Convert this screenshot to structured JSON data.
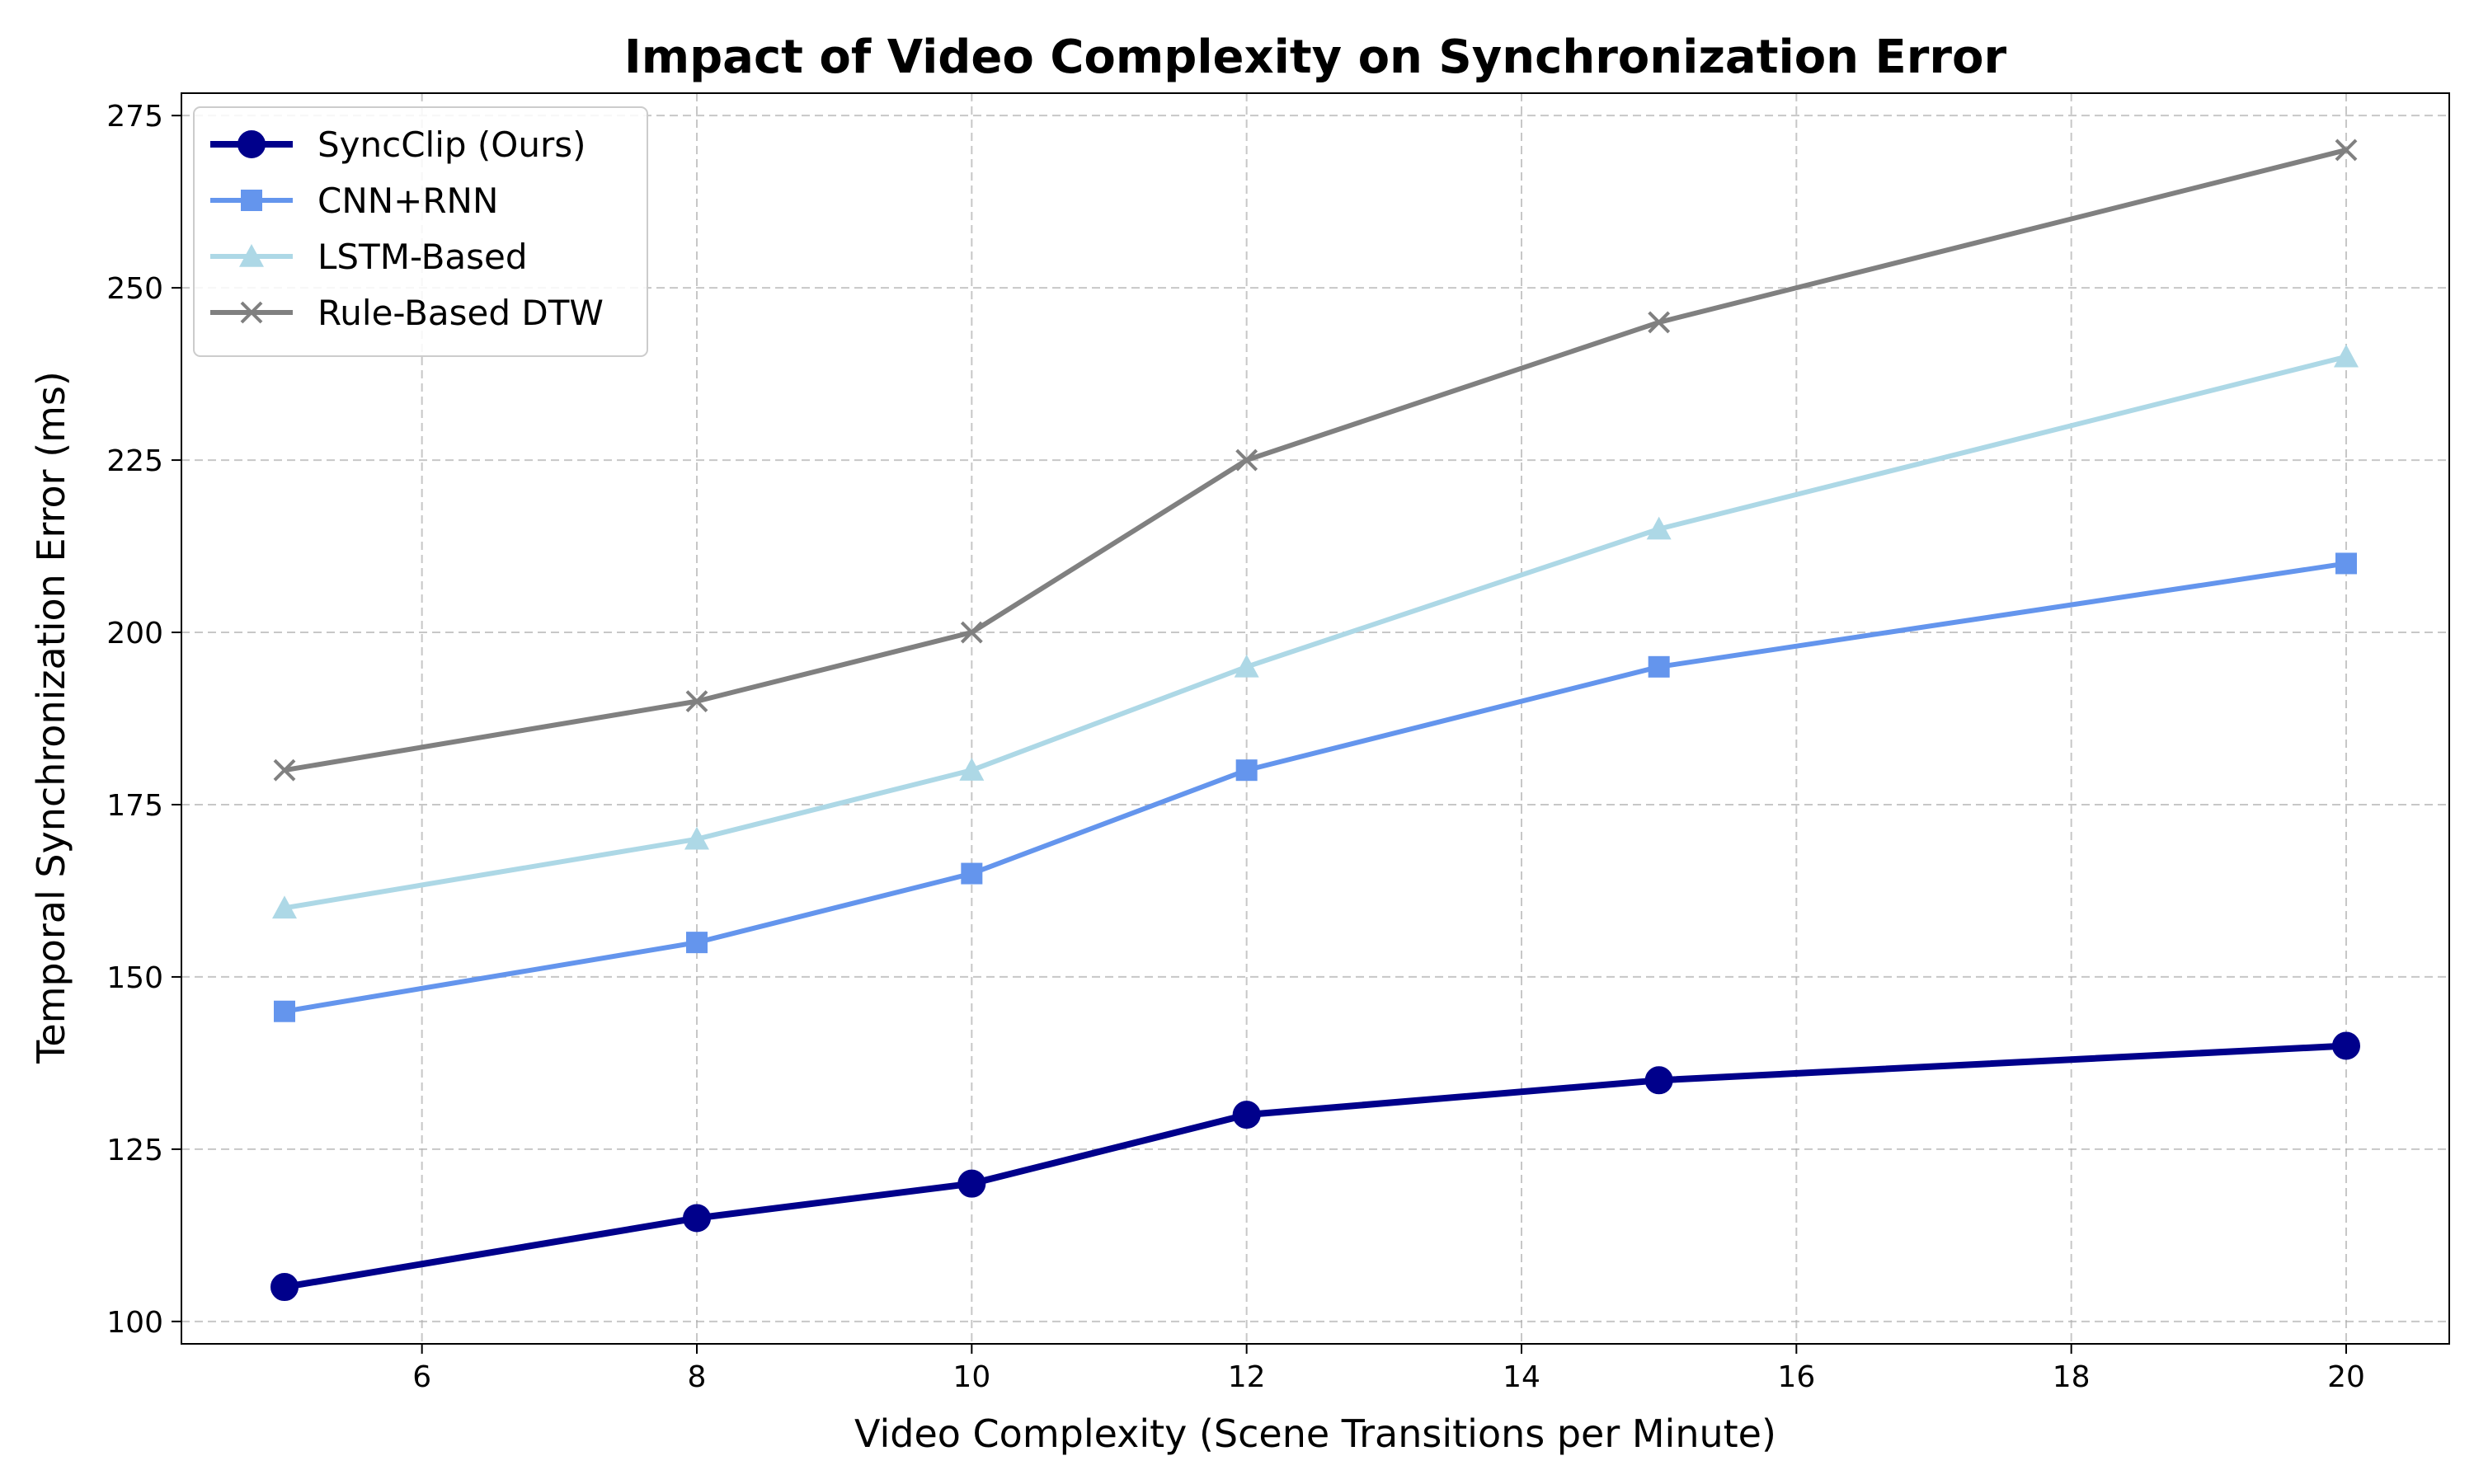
{
  "chart_data": {
    "type": "line",
    "title": "Impact of Video Complexity on Synchronization Error",
    "xlabel": "Video Complexity (Scene Transitions per Minute)",
    "ylabel": "Temporal Synchronization Error (ms)",
    "x": [
      5,
      8,
      10,
      12,
      15,
      20
    ],
    "xlim": [
      4.25,
      20.75
    ],
    "ylim": [
      96.75,
      278.25
    ],
    "xticks": [
      6,
      8,
      10,
      12,
      14,
      16,
      18,
      20
    ],
    "yticks": [
      100,
      125,
      150,
      175,
      200,
      225,
      250,
      275
    ],
    "grid": true,
    "legend_position": "upper-left",
    "series": [
      {
        "name": "SyncClip (Ours)",
        "values": [
          105,
          115,
          120,
          130,
          135,
          140
        ],
        "color": "#00008B",
        "marker": "circle"
      },
      {
        "name": "CNN+RNN",
        "values": [
          145,
          155,
          165,
          180,
          195,
          210
        ],
        "color": "#6495ED",
        "marker": "square"
      },
      {
        "name": "LSTM-Based",
        "values": [
          160,
          170,
          180,
          195,
          215,
          240
        ],
        "color": "#ADD8E6",
        "marker": "triangle"
      },
      {
        "name": "Rule-Based DTW",
        "values": [
          180,
          190,
          200,
          225,
          245,
          270
        ],
        "color": "#808080",
        "marker": "x"
      }
    ]
  }
}
